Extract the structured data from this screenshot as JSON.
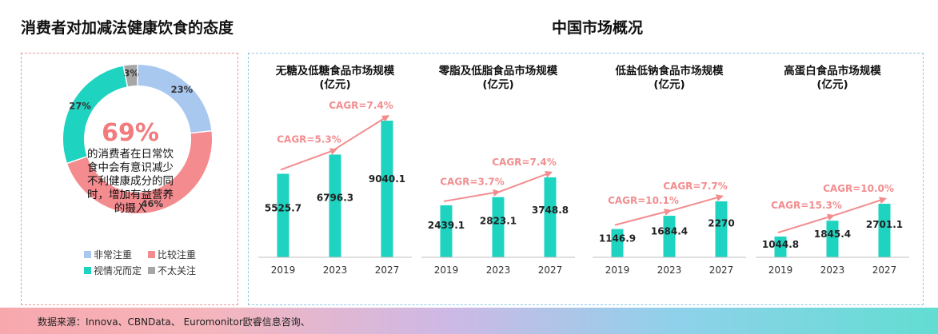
{
  "left_title": "消费者对加减法健康饮食的态度",
  "right_title": "中国市场概况",
  "donut": {
    "center_value": "69%",
    "center_text": [
      "的消费者在日常饮",
      "食中会有意识减少",
      "不利健康成分的同",
      "时，增加有益营养",
      "的摄入"
    ],
    "slices": [
      {
        "name": "非常注重",
        "value": 23,
        "label": "23%",
        "color": "#a8c8f0"
      },
      {
        "name": "比较注重",
        "value": 46,
        "label": "46%",
        "color": "#f48b8e"
      },
      {
        "name": "视情况而定",
        "value": 27,
        "label": "27%",
        "color": "#1ed3c0"
      },
      {
        "name": "不太关注",
        "value": 3,
        "label": "3%",
        "color": "#a6a6a6"
      }
    ]
  },
  "chart_data": [
    {
      "type": "bar",
      "title": [
        "无糖及低糖食品市场规模",
        "(亿元)"
      ],
      "categories": [
        "2019",
        "2023",
        "2027"
      ],
      "values": [
        5525.7,
        6796.3,
        9040.1
      ],
      "value_labels": [
        "5525.7",
        "6796.3",
        "9040.1"
      ],
      "cagr": [
        "CAGR=5.3%",
        "CAGR=7.4%"
      ],
      "color": "#1ed3c0"
    },
    {
      "type": "bar",
      "title": [
        "零脂及低脂食品市场规模",
        "(亿元)"
      ],
      "categories": [
        "2019",
        "2023",
        "2027"
      ],
      "values": [
        2439.1,
        2823.1,
        3748.8
      ],
      "value_labels": [
        "2439.1",
        "2823.1",
        "3748.8"
      ],
      "cagr": [
        "CAGR=3.7%",
        "CAGR=7.4%"
      ],
      "color": "#1ed3c0"
    },
    {
      "type": "bar",
      "title": [
        "低盐低钠食品市场规模",
        "(亿元)"
      ],
      "categories": [
        "2019",
        "2023",
        "2027"
      ],
      "values": [
        1146.9,
        1684.4,
        2270
      ],
      "value_labels": [
        "1146.9",
        "1684.4",
        "2270"
      ],
      "cagr": [
        "CAGR=10.1%",
        "CAGR=7.7%"
      ],
      "color": "#1ed3c0"
    },
    {
      "type": "bar",
      "title": [
        "高蛋白食品市场规模",
        "(亿元)"
      ],
      "categories": [
        "2019",
        "2023",
        "2027"
      ],
      "values": [
        1044.8,
        1845.4,
        2701.1
      ],
      "value_labels": [
        "1044.8",
        "1845.4",
        "2701.1"
      ],
      "cagr": [
        "CAGR=15.3%",
        "CAGR=10.0%"
      ],
      "color": "#1ed3c0"
    }
  ],
  "colors": {
    "arrow": "#f28d8f",
    "cagr_text": "#f28d8f",
    "axis": "#bfbfbf"
  },
  "footer": "数据来源：Innova、CBNData、 Euromonitor欧睿信息咨询、"
}
